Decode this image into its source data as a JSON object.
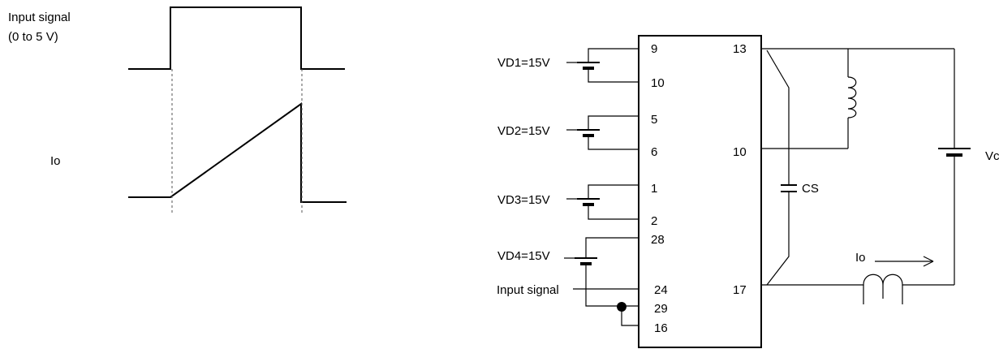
{
  "timing": {
    "input_label_line1": "Input signal",
    "input_label_line2": "(0 to 5 V)",
    "io_label": "Io"
  },
  "circuit": {
    "supplies": [
      {
        "label": "VD1=15V",
        "pins": [
          "9",
          "10"
        ]
      },
      {
        "label": "VD2=15V",
        "pins": [
          "5",
          "6"
        ]
      },
      {
        "label": "VD3=15V",
        "pins": [
          "1",
          "2"
        ]
      },
      {
        "label": "VD4=15V",
        "pins": [
          "28",
          "24"
        ]
      }
    ],
    "input_signal_label": "Input signal",
    "left_pins_extra": [
      "29",
      "16"
    ],
    "right_pins": [
      "13",
      "10",
      "17"
    ],
    "cs_label": "CS",
    "vcc_label": "Vcc",
    "io_label": "Io"
  }
}
